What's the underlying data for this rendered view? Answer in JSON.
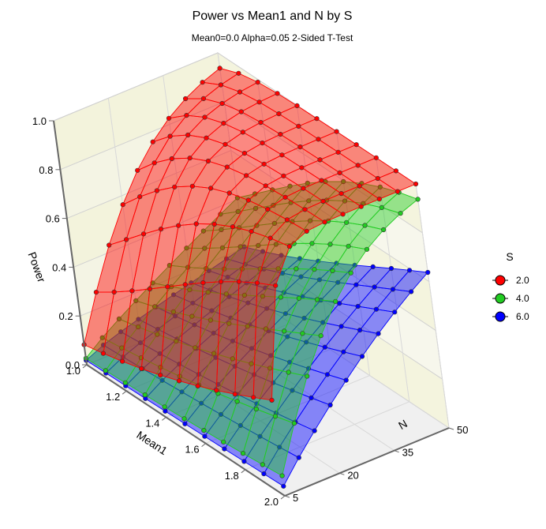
{
  "chart_data": {
    "type": "surface",
    "title": "Power vs Mean1 and N by S",
    "subtitle": "Mean0=0.0 Alpha=0.05 2-Sided T-Test",
    "xlabel": "Mean1",
    "ylabel": "N",
    "zlabel": "Power",
    "x_ticks": [
      "1.0",
      "1.2",
      "1.4",
      "1.6",
      "1.8",
      "2.0"
    ],
    "y_ticks": [
      "5",
      "20",
      "35",
      "50"
    ],
    "z_ticks": [
      "0.0",
      "0.2",
      "0.4",
      "0.6",
      "0.8",
      "1.0"
    ],
    "x_range": [
      1.0,
      2.0
    ],
    "y_range": [
      5,
      50
    ],
    "z_range": [
      0,
      1
    ],
    "mean0": 0.0,
    "alpha": 0.05,
    "sides": 2,
    "mean1_values": [
      1.0,
      1.1,
      1.2,
      1.3,
      1.4,
      1.5,
      1.6,
      1.7,
      1.8,
      1.9,
      2.0
    ],
    "n_values": [
      5,
      10,
      15,
      20,
      25,
      30,
      35,
      40,
      45,
      50
    ],
    "legend": {
      "title": "S",
      "entries": [
        {
          "label": "2.0",
          "color": "#ff0000"
        },
        {
          "label": "4.0",
          "color": "#22cc22"
        },
        {
          "label": "6.0",
          "color": "#0000ff"
        }
      ]
    },
    "series": [
      {
        "name": "2.0",
        "s": 2.0,
        "color": "#ff0000"
      },
      {
        "name": "4.0",
        "s": 4.0,
        "color": "#22cc22"
      },
      {
        "name": "6.0",
        "s": 6.0,
        "color": "#0000ff"
      }
    ]
  }
}
